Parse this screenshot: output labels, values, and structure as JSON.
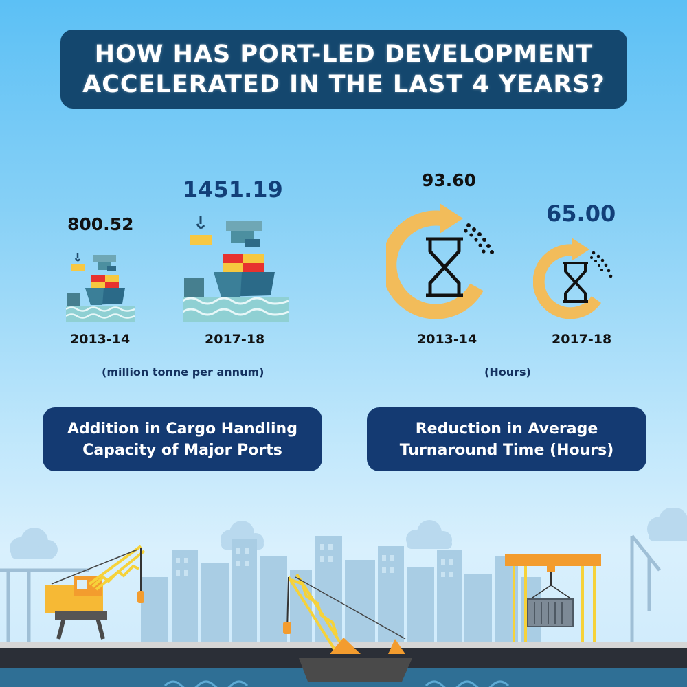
{
  "title": {
    "line1": "HOW HAS PORT-LED DEVELOPMENT",
    "line2": "ACCELERATED IN THE LAST 4 YEARS?"
  },
  "cargo": {
    "value_2013": "800.52",
    "year_2013": "2013-14",
    "value_2017": "1451.19",
    "year_2017": "2017-18",
    "unit": "(million tonne per annum)",
    "label_line1": "Addition in Cargo Handling",
    "label_line2": "Capacity of Major Ports"
  },
  "turnaround": {
    "value_2013": "93.60",
    "year_2013": "2013-14",
    "value_2017": "65.00",
    "year_2017": "2017-18",
    "unit": "(Hours)",
    "label_line1": "Reduction in Average",
    "label_line2": "Turnaround Time (Hours)"
  },
  "icons": {
    "ship": "cargo-ship-icon",
    "cycle": "hourglass-cycle-icon"
  },
  "colors": {
    "title_bg": "#14476e",
    "label_bg": "#143a72",
    "value_blue": "#123f78",
    "cycle_orange": "#f2bc5a"
  }
}
